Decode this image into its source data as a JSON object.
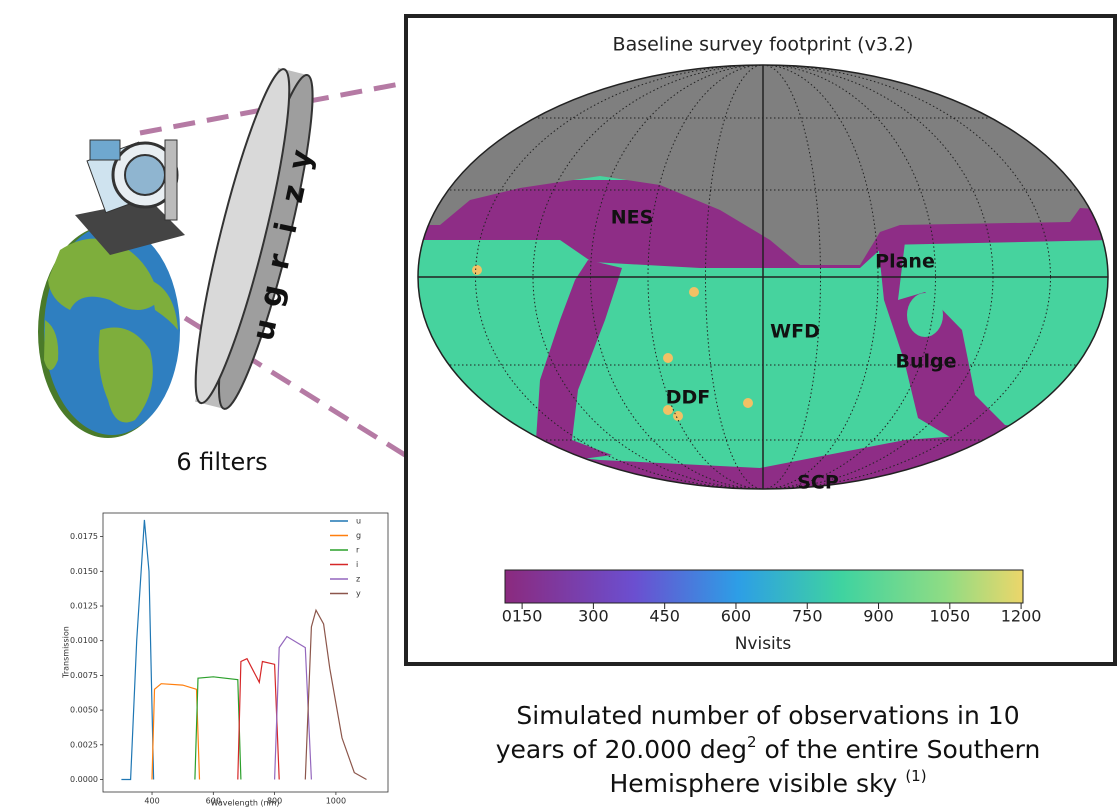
{
  "filters": {
    "letters": [
      "u",
      "g",
      "r",
      "i",
      "z",
      "y"
    ],
    "caption": "6 filters"
  },
  "transmission_chart": {
    "type": "line",
    "ylabel": "Transmission",
    "xlabel": "Wavelength (nm)",
    "xlim": [
      240,
      1170
    ],
    "ylim": [
      -0.0009,
      0.0192
    ],
    "xticks": [
      400,
      600,
      800,
      1000
    ],
    "yticks": [
      {
        "value": 0,
        "label": "0.0000"
      },
      {
        "value": 0.0025,
        "label": "0.0025"
      },
      {
        "value": 0.005,
        "label": "0.0050"
      },
      {
        "value": 0.0075,
        "label": "0.0075"
      },
      {
        "value": 0.01,
        "label": "0.0100"
      },
      {
        "value": 0.0125,
        "label": "0.0125"
      },
      {
        "value": 0.015,
        "label": "0.0150"
      },
      {
        "value": 0.0175,
        "label": "0.0175"
      }
    ],
    "series": [
      {
        "name": "u",
        "color": "#1f77b4",
        "x": [
          300,
          330,
          350,
          375,
          390,
          405
        ],
        "values": [
          0,
          0,
          0.01,
          0.0187,
          0.015,
          0
        ]
      },
      {
        "name": "g",
        "color": "#ff7f0e",
        "x": [
          400,
          408,
          430,
          500,
          545,
          555
        ],
        "values": [
          0,
          0.0065,
          0.0069,
          0.0068,
          0.0065,
          0
        ]
      },
      {
        "name": "r",
        "color": "#2ca02c",
        "x": [
          540,
          550,
          600,
          680,
          690
        ],
        "values": [
          0,
          0.0073,
          0.0074,
          0.0072,
          0
        ]
      },
      {
        "name": "i",
        "color": "#d62728",
        "x": [
          680,
          690,
          710,
          750,
          760,
          800,
          815
        ],
        "values": [
          0,
          0.0085,
          0.0087,
          0.007,
          0.0085,
          0.0083,
          0
        ]
      },
      {
        "name": "z",
        "color": "#9467bd",
        "x": [
          800,
          815,
          840,
          900,
          920
        ],
        "values": [
          0,
          0.0095,
          0.0103,
          0.0095,
          0
        ]
      },
      {
        "name": "y",
        "color": "#8c564b",
        "x": [
          900,
          920,
          935,
          960,
          980,
          1020,
          1060,
          1100
        ],
        "values": [
          0,
          0.011,
          0.0122,
          0.0112,
          0.008,
          0.003,
          0.0005,
          0
        ]
      }
    ]
  },
  "sky_map": {
    "title": "Baseline survey footprint (v3.2)",
    "regions": [
      "NES",
      "Plane",
      "WFD",
      "Bulge",
      "DDF",
      "SCP"
    ],
    "colorbar": {
      "label": "Nvisits",
      "clim": [
        114,
        1204
      ],
      "ticks": [
        {
          "value": 150,
          "label": "0150"
        },
        300,
        450,
        600,
        750,
        900,
        1050,
        1200
      ]
    }
  },
  "caption": {
    "line1": "Simulated number of observations in 10",
    "line2": [
      "years of 20.000 deg",
      "2",
      " of the entire Southern"
    ],
    "line3": [
      "Hemisphere visible sky ",
      "(1)"
    ]
  }
}
